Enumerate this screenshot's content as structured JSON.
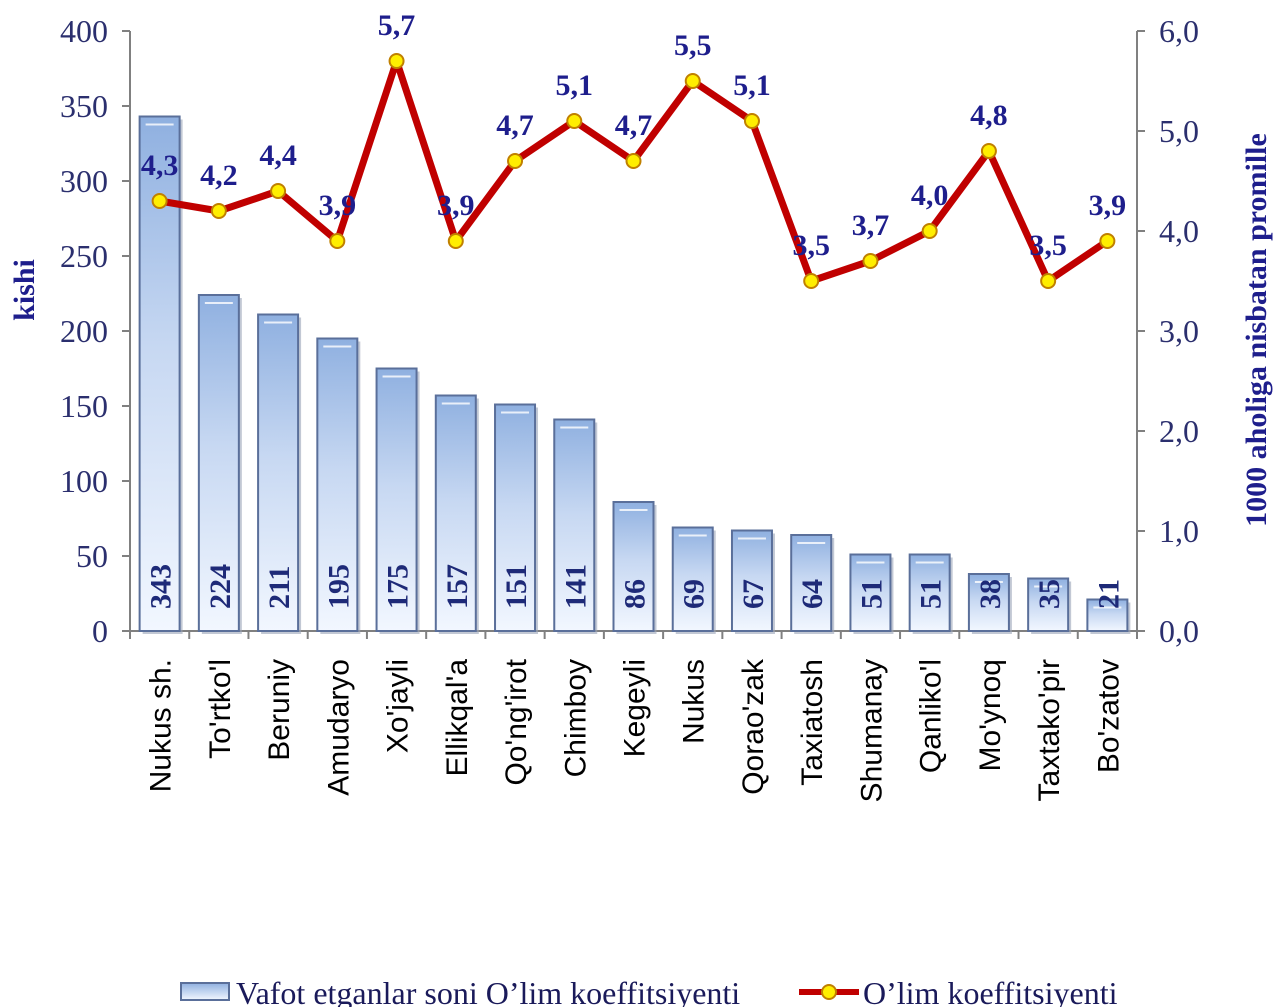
{
  "chart_data": {
    "type": "bar",
    "categories": [
      "Nukus sh.",
      "To'rtko'l",
      "Beruniy",
      "Amudaryo",
      "Xo'jayli",
      "Ellikqal'a",
      "Qo'ng'irot",
      "Chimboy",
      "Kegeyli",
      "Nukus",
      "Qorao'zak",
      "Taxiatosh",
      "Shumanay",
      "Qanliko'l",
      "Mo'ynoq",
      "Taxtako'pir",
      "Bo'zatov"
    ],
    "series": [
      {
        "name": "Vafot etganlar soni O’lim koeffitsiyenti",
        "type": "bar",
        "axis": "left",
        "values": [
          343,
          224,
          211,
          195,
          175,
          157,
          151,
          141,
          86,
          69,
          67,
          64,
          51,
          51,
          38,
          35,
          21
        ],
        "labels": [
          "343",
          "224",
          "211",
          "195",
          "175",
          "157",
          "151",
          "141",
          "86",
          "69",
          "67",
          "64",
          "51",
          "51",
          "38",
          "35",
          "21"
        ]
      },
      {
        "name": "O’lim koeffitsiyenti",
        "type": "line",
        "axis": "right",
        "values": [
          4.3,
          4.2,
          4.4,
          3.9,
          5.7,
          3.9,
          4.7,
          5.1,
          4.7,
          5.5,
          5.1,
          3.5,
          3.7,
          4.0,
          4.8,
          3.5,
          3.9
        ],
        "labels": [
          "4,3",
          "4,2",
          "4,4",
          "3,9",
          "5,7",
          "3,9",
          "4,7",
          "5,1",
          "4,7",
          "5,5",
          "5,1",
          "3,5",
          "3,7",
          "4,0",
          "4,8",
          "3,5",
          "3,9"
        ]
      }
    ],
    "ylabel": "kishi",
    "y2label": "1000 aholiga nisbatan promille",
    "ylim": [
      0,
      400
    ],
    "y2lim": [
      0,
      6
    ],
    "yticks": [
      0,
      50,
      100,
      150,
      200,
      250,
      300,
      350,
      400
    ],
    "ytick_labels": [
      "0",
      "50",
      "100",
      "150",
      "200",
      "250",
      "300",
      "350",
      "400"
    ],
    "y2ticks": [
      0,
      1,
      2,
      3,
      4,
      5,
      6
    ],
    "y2tick_labels": [
      "0,0",
      "1,0",
      "2,0",
      "3,0",
      "4,0",
      "5,0",
      "6,0"
    ],
    "grid": false,
    "legend_position": "bottom",
    "colors": {
      "bar_fill_top": "#8fb0e0",
      "bar_fill_bottom": "#f2f7ff",
      "bar_stroke": "#5a6f9a",
      "line": "#c00000",
      "marker_fill": "#ffee00",
      "marker_stroke": "#c08000"
    }
  }
}
